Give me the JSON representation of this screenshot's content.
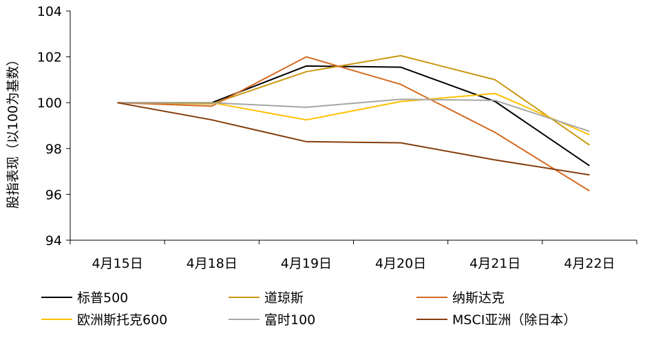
{
  "chart_data": {
    "type": "line",
    "title": "",
    "xlabel": "",
    "ylabel": "股指表现（以100为基数）",
    "ylim": [
      94,
      104
    ],
    "yticks": [
      94,
      96,
      98,
      100,
      102,
      104
    ],
    "categories": [
      "4月15日",
      "4月18日",
      "4月19日",
      "4月20日",
      "4月21日",
      "4月22日"
    ],
    "grid": false,
    "legend_position": "bottom",
    "series": [
      {
        "name": "标普500",
        "color": "#000000",
        "values": [
          100,
          100,
          101.6,
          101.55,
          100.05,
          97.25
        ]
      },
      {
        "name": "道琼斯",
        "color": "#c9980f",
        "values": [
          100,
          99.95,
          101.35,
          102.05,
          101.0,
          98.15
        ]
      },
      {
        "name": "纳斯达克",
        "color": "#d4691e",
        "values": [
          100,
          99.85,
          102.0,
          100.8,
          98.7,
          96.15
        ]
      },
      {
        "name": "欧洲斯托克600",
        "color": "#ffc000",
        "values": [
          100,
          100.0,
          99.25,
          100.05,
          100.4,
          98.6
        ]
      },
      {
        "name": "富时100",
        "color": "#a5a5a5",
        "values": [
          100,
          100.0,
          99.8,
          100.15,
          100.1,
          98.75
        ]
      },
      {
        "name": "MSCI亚洲（除日本）",
        "color": "#843c0c",
        "values": [
          100,
          99.25,
          98.3,
          98.25,
          97.5,
          96.85
        ]
      }
    ]
  }
}
